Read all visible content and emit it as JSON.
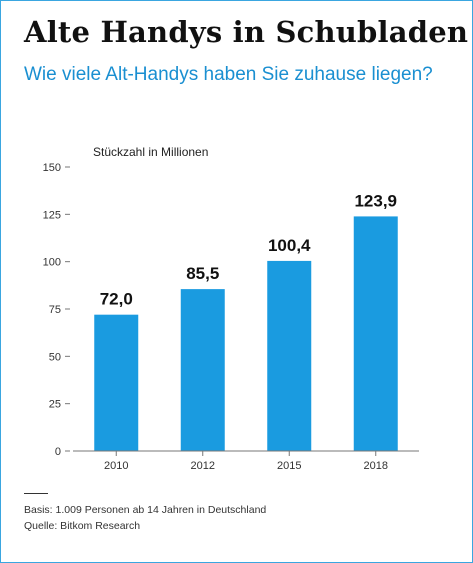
{
  "header": {
    "title": "Alte Handys in Schubladen",
    "subtitle": "Wie viele Alt-Handys haben Sie zuhause liegen?"
  },
  "chart_data": {
    "type": "bar",
    "title": "Alte Handys in Schubladen",
    "subtitle": "Wie viele Alt-Handys haben Sie zuhause liegen?",
    "ylabel": "Stückzahl in Millionen",
    "xlabel": "",
    "categories": [
      "2010",
      "2012",
      "2015",
      "2018"
    ],
    "values": [
      72.0,
      85.5,
      100.4,
      123.9
    ],
    "value_labels": [
      "72,0",
      "85,5",
      "100,4",
      "123,9"
    ],
    "ylim": [
      0,
      150
    ],
    "yticks": [
      0,
      25,
      50,
      75,
      100,
      125,
      150
    ],
    "grid": false,
    "bar_color": "#1a9be0"
  },
  "footer": {
    "basis": "Basis: 1.009 Personen ab 14 Jahren in Deutschland",
    "source": "Quelle: Bitkom Research"
  },
  "colors": {
    "accent": "#1a8fd1",
    "border": "#3aa6e0"
  }
}
